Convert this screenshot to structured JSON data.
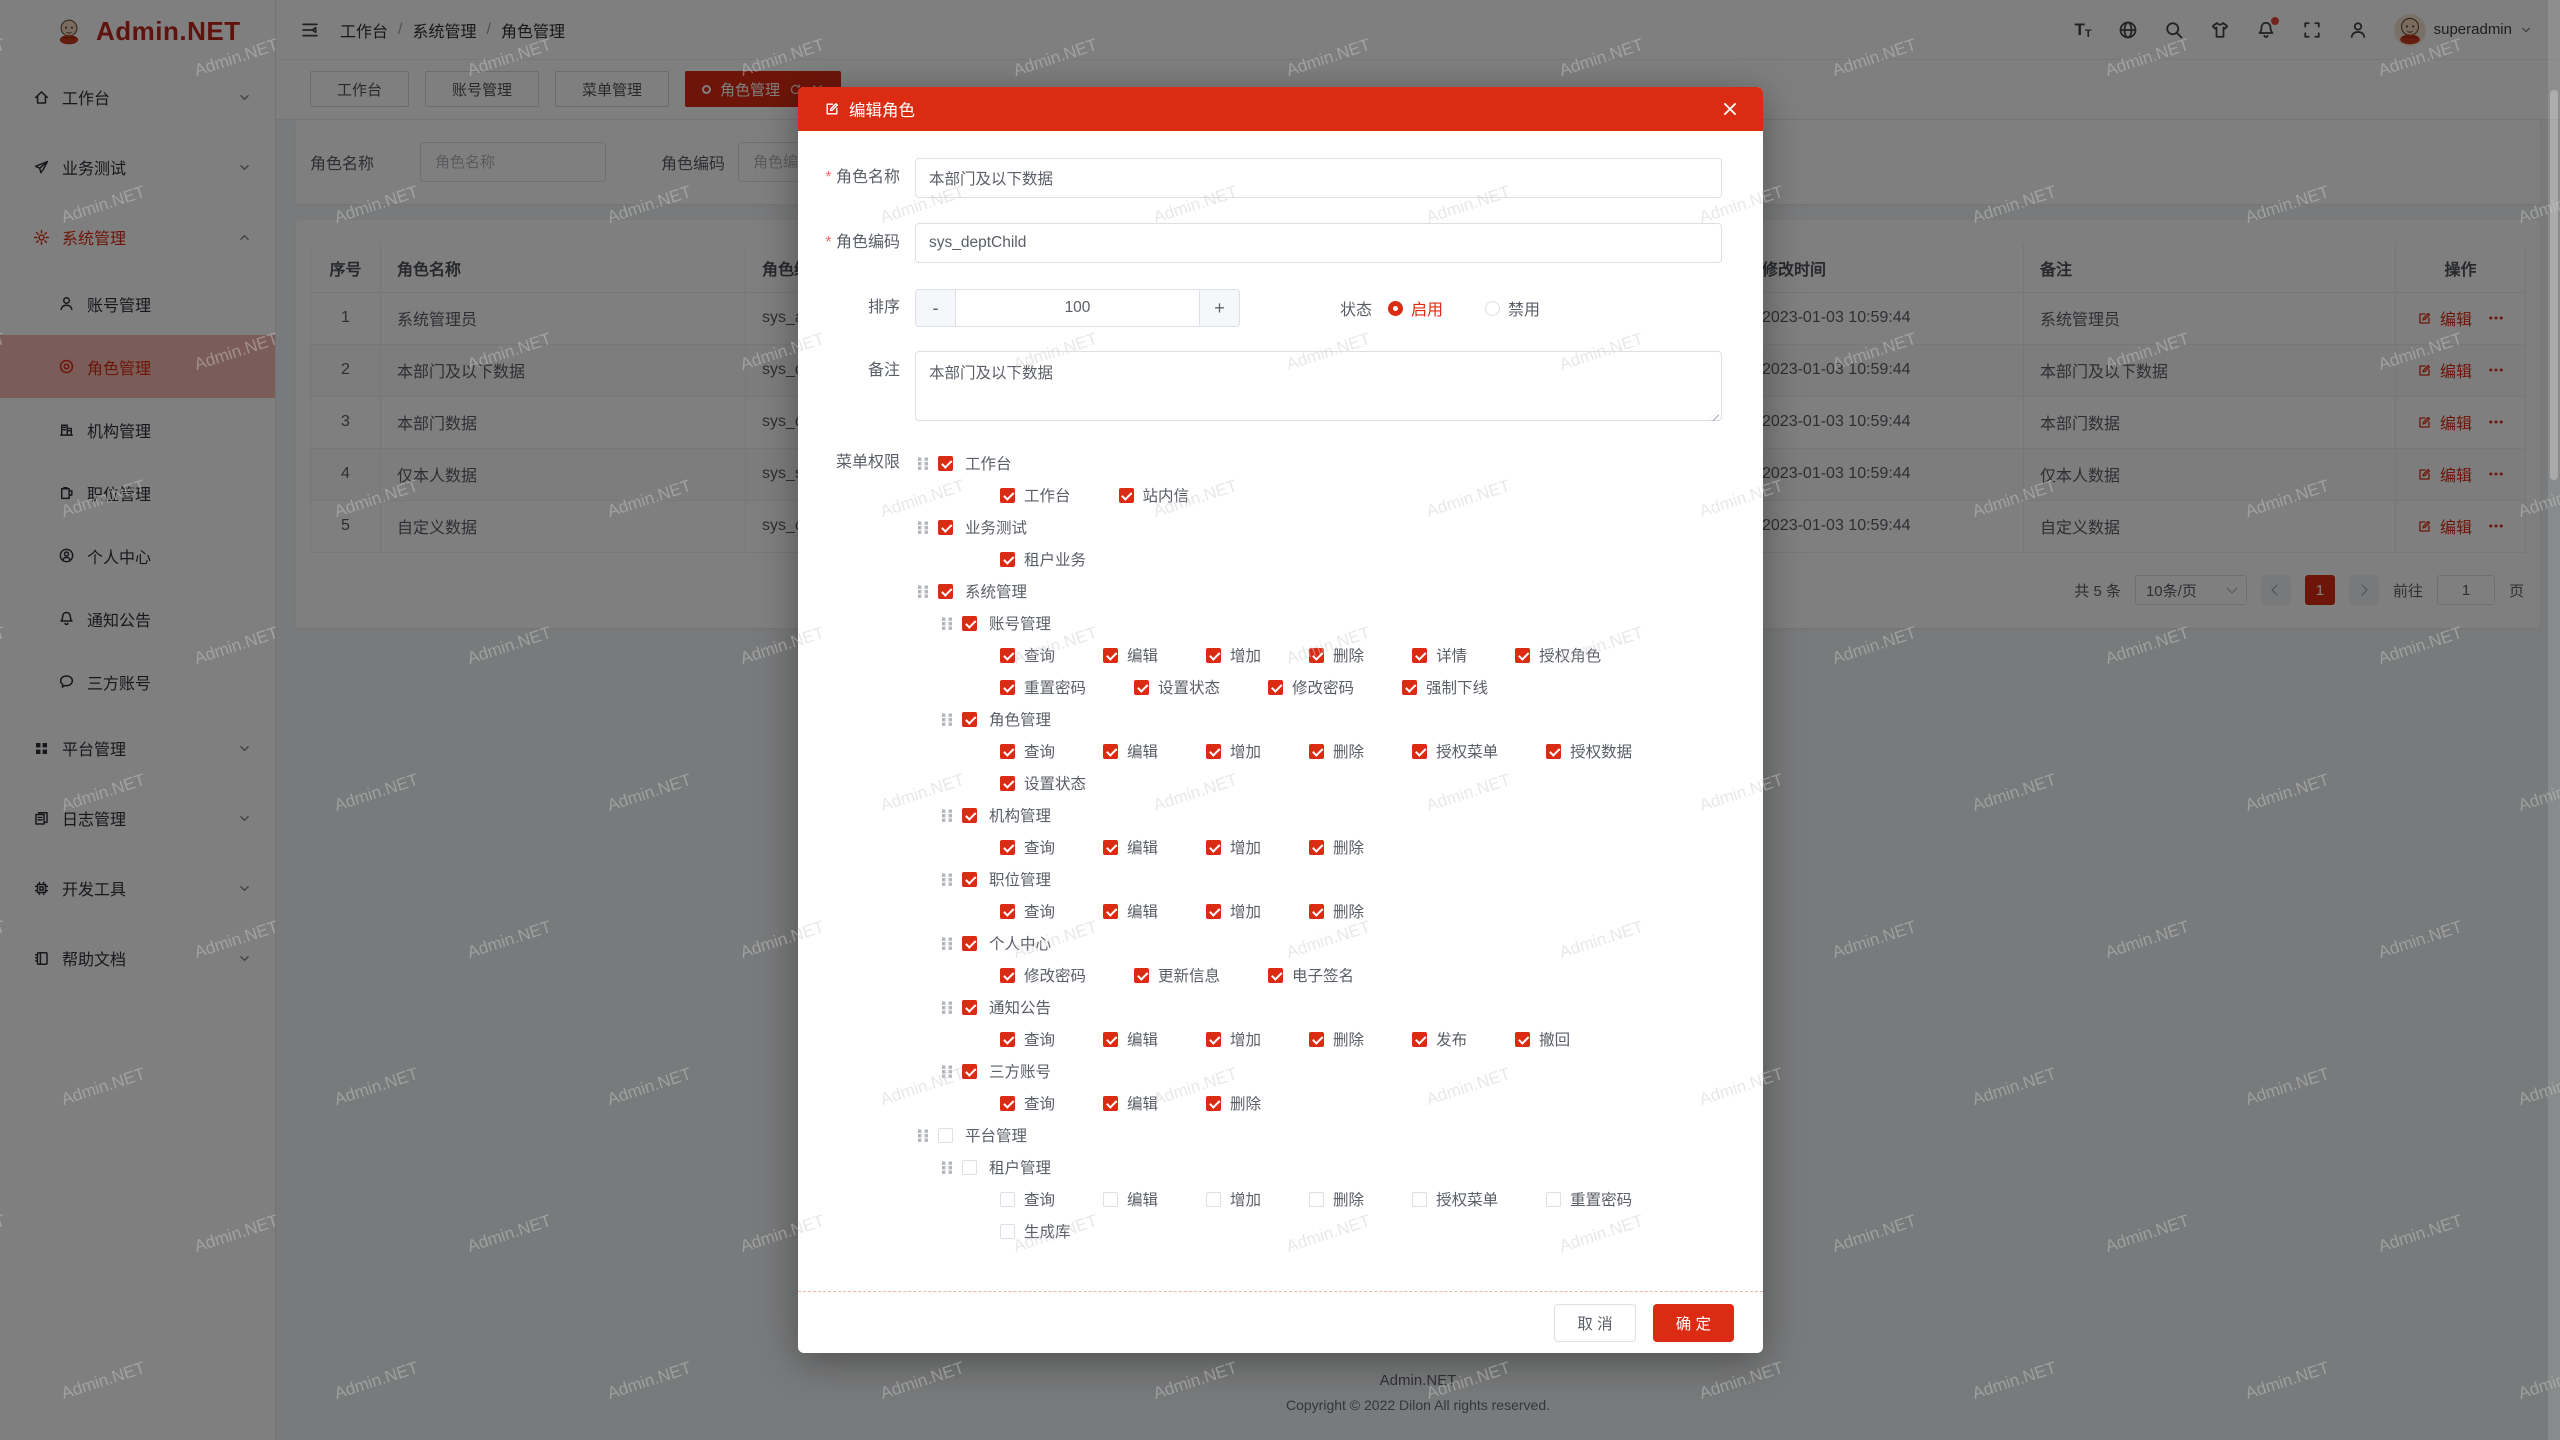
{
  "watermark": {
    "text": "Admin.NET"
  },
  "theme": {
    "accent": "#dc2b13",
    "sidebar_active_bg": "rgba(220,43,19,0.32)",
    "overlay": "rgba(0,0,0,0.5)"
  },
  "sidebar": {
    "logo_text": "Admin.NET",
    "items": [
      {
        "id": "workbench",
        "label": "工作台",
        "icon": "home-icon",
        "type": "top",
        "chevron": "down"
      },
      {
        "id": "biz-test",
        "label": "业务测试",
        "icon": "send-icon",
        "type": "top",
        "chevron": "down"
      },
      {
        "id": "system",
        "label": "系统管理",
        "icon": "gear-icon",
        "type": "top",
        "chevron": "up",
        "active": true
      },
      {
        "id": "account",
        "label": "账号管理",
        "icon": "user-icon",
        "type": "sub"
      },
      {
        "id": "role",
        "label": "角色管理",
        "icon": "role-icon",
        "type": "sub",
        "selected": true
      },
      {
        "id": "org",
        "label": "机构管理",
        "icon": "org-icon",
        "type": "sub"
      },
      {
        "id": "position",
        "label": "职位管理",
        "icon": "position-icon",
        "type": "sub"
      },
      {
        "id": "profile",
        "label": "个人中心",
        "icon": "profile-icon",
        "type": "sub"
      },
      {
        "id": "notice",
        "label": "通知公告",
        "icon": "bell-icon",
        "type": "sub"
      },
      {
        "id": "third",
        "label": "三方账号",
        "icon": "chat-icon",
        "type": "sub"
      },
      {
        "id": "platform",
        "label": "平台管理",
        "icon": "grid-icon",
        "type": "top",
        "chevron": "down"
      },
      {
        "id": "log",
        "label": "日志管理",
        "icon": "log-icon",
        "type": "top",
        "chevron": "down"
      },
      {
        "id": "devtools",
        "label": "开发工具",
        "icon": "cpu-icon",
        "type": "top",
        "chevron": "down"
      },
      {
        "id": "docs",
        "label": "帮助文档",
        "icon": "book-icon",
        "type": "top",
        "chevron": "down"
      }
    ]
  },
  "header": {
    "breadcrumb": [
      "工作台",
      "系统管理",
      "角色管理"
    ],
    "breadcrumb_sep": "/",
    "username": "superadmin"
  },
  "tabs": [
    {
      "label": "工作台"
    },
    {
      "label": "账号管理"
    },
    {
      "label": "菜单管理"
    },
    {
      "label": "角色管理",
      "active": true
    }
  ],
  "filters": {
    "name_label": "角色名称",
    "name_placeholder": "角色名称",
    "code_label": "角色编码",
    "code_placeholder": "角色编码"
  },
  "table": {
    "columns": [
      "序号",
      "角色名称",
      "角色编码",
      "修改时间",
      "备注",
      "操作"
    ],
    "edit_label": "编辑",
    "rows": [
      {
        "index": "1",
        "name": "系统管理员",
        "code": "sys_a",
        "time": "2023-01-03 10:59:44",
        "remark": "系统管理员"
      },
      {
        "index": "2",
        "name": "本部门及以下数据",
        "code": "sys_d",
        "time": "2023-01-03 10:59:44",
        "remark": "本部门及以下数据"
      },
      {
        "index": "3",
        "name": "本部门数据",
        "code": "sys_d",
        "time": "2023-01-03 10:59:44",
        "remark": "本部门数据"
      },
      {
        "index": "4",
        "name": "仅本人数据",
        "code": "sys_s",
        "time": "2023-01-03 10:59:44",
        "remark": "仅本人数据"
      },
      {
        "index": "5",
        "name": "自定义数据",
        "code": "sys_c",
        "time": "2023-01-03 10:59:44",
        "remark": "自定义数据"
      }
    ]
  },
  "pagination": {
    "total": "共 5 条",
    "page_size": "10条/页",
    "current": "1",
    "goto_label": "前往",
    "goto_value": "1",
    "page_unit": "页"
  },
  "page_footer": {
    "line1": "Admin.NET",
    "line2": "Copyright © 2022 Dilon All rights reserved."
  },
  "modal": {
    "title": "编辑角色",
    "fields": {
      "name_label": "角色名称",
      "name_value": "本部门及以下数据",
      "code_label": "角色编码",
      "code_value": "sys_deptChild",
      "sort_label": "排序",
      "sort_value": "100",
      "minus": "-",
      "plus": "+",
      "status_label": "状态",
      "status_on": "启用",
      "status_off": "禁用",
      "remark_label": "备注",
      "remark_value": "本部门及以下数据"
    },
    "tree": {
      "label": "菜单权限",
      "nodes": [
        {
          "kind": "parent",
          "level": 0,
          "checked": true,
          "label": "工作台"
        },
        {
          "kind": "leaves",
          "checked": true,
          "items": [
            "工作台",
            "站内信"
          ]
        },
        {
          "kind": "parent",
          "level": 0,
          "checked": true,
          "label": "业务测试"
        },
        {
          "kind": "leaves",
          "checked": true,
          "items": [
            "租户业务"
          ]
        },
        {
          "kind": "parent",
          "level": 0,
          "checked": true,
          "label": "系统管理"
        },
        {
          "kind": "parent",
          "level": 1,
          "checked": true,
          "label": "账号管理"
        },
        {
          "kind": "leaves",
          "checked": true,
          "items": [
            "查询",
            "编辑",
            "增加",
            "删除",
            "详情",
            "授权角色"
          ]
        },
        {
          "kind": "leaves",
          "checked": true,
          "items": [
            "重置密码",
            "设置状态",
            "修改密码",
            "强制下线"
          ]
        },
        {
          "kind": "parent",
          "level": 1,
          "checked": true,
          "label": "角色管理"
        },
        {
          "kind": "leaves",
          "checked": true,
          "items": [
            "查询",
            "编辑",
            "增加",
            "删除",
            "授权菜单",
            "授权数据"
          ]
        },
        {
          "kind": "leaves",
          "checked": true,
          "items": [
            "设置状态"
          ]
        },
        {
          "kind": "parent",
          "level": 1,
          "checked": true,
          "label": "机构管理"
        },
        {
          "kind": "leaves",
          "checked": true,
          "items": [
            "查询",
            "编辑",
            "增加",
            "删除"
          ]
        },
        {
          "kind": "parent",
          "level": 1,
          "checked": true,
          "label": "职位管理"
        },
        {
          "kind": "leaves",
          "checked": true,
          "items": [
            "查询",
            "编辑",
            "增加",
            "删除"
          ]
        },
        {
          "kind": "parent",
          "level": 1,
          "checked": true,
          "label": "个人中心"
        },
        {
          "kind": "leaves",
          "checked": true,
          "items": [
            "修改密码",
            "更新信息",
            "电子签名"
          ]
        },
        {
          "kind": "parent",
          "level": 1,
          "checked": true,
          "label": "通知公告"
        },
        {
          "kind": "leaves",
          "checked": true,
          "items": [
            "查询",
            "编辑",
            "增加",
            "删除",
            "发布",
            "撤回"
          ]
        },
        {
          "kind": "parent",
          "level": 1,
          "checked": true,
          "label": "三方账号"
        },
        {
          "kind": "leaves",
          "checked": true,
          "items": [
            "查询",
            "编辑",
            "删除"
          ]
        },
        {
          "kind": "parent",
          "level": 0,
          "checked": false,
          "label": "平台管理"
        },
        {
          "kind": "parent",
          "level": 1,
          "checked": false,
          "label": "租户管理"
        },
        {
          "kind": "leaves",
          "checked": false,
          "items": [
            "查询",
            "编辑",
            "增加",
            "删除",
            "授权菜单",
            "重置密码"
          ]
        },
        {
          "kind": "leaves",
          "checked": false,
          "items": [
            "生成库"
          ]
        }
      ]
    },
    "cancel_label": "取 消",
    "ok_label": "确 定"
  }
}
